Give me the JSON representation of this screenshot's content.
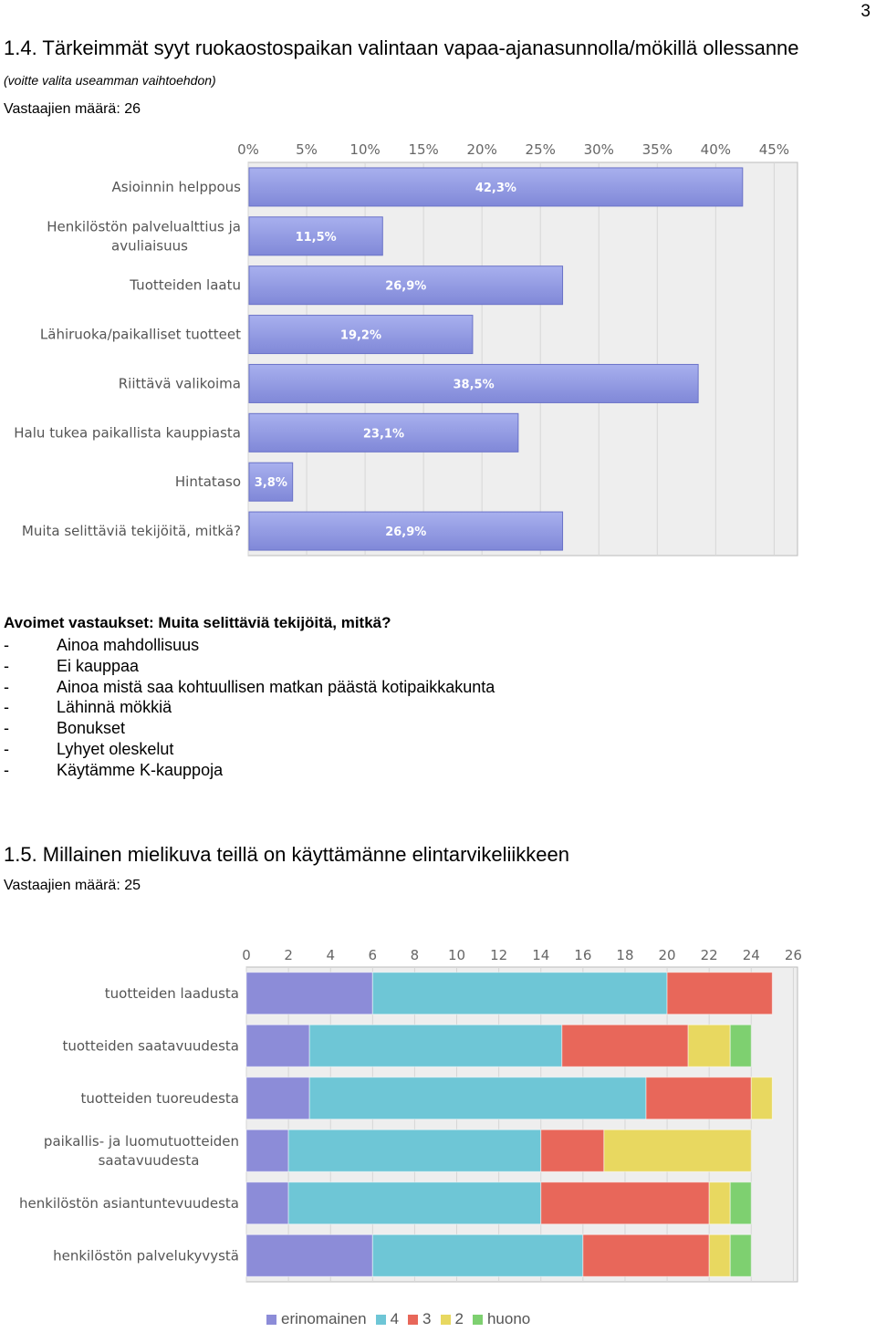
{
  "page_number": "3",
  "section1": {
    "title": "1.4. Tärkeimmät syyt ruokaostospaikan valintaan vapaa-ajanasunnolla/mökillä ollessanne",
    "subtitle": "(voitte valita useamman vaihtoehdon)",
    "respondents": "Vastaajien määrä: 26"
  },
  "open_answers": {
    "title": "Avoimet vastaukset: Muita selittäviä tekijöitä, mitkä?",
    "dash": "-",
    "items": [
      "Ainoa mahdollisuus",
      "Ei kauppaa",
      "Ainoa mistä saa kohtuullisen matkan päästä kotipaikkakunta",
      "Lähinnä mökkiä",
      "Bonukset",
      "Lyhyet oleskelut",
      "Käytämme K-kauppoja"
    ]
  },
  "section2": {
    "title": "1.5. Millainen mielikuva teillä on käyttämänne elintarvikeliikkeen",
    "respondents": "Vastaajien määrä: 25"
  },
  "chart_data": [
    {
      "type": "bar",
      "orientation": "horizontal",
      "categories": [
        "Asioinnin helppous",
        "Henkilöstön palvelualttius ja avuliaisuus",
        "Tuotteiden laatu",
        "Lähiruoka/paikalliset tuotteet",
        "Riittävä valikoima",
        "Halu tukea paikallista kauppiasta",
        "Hintataso",
        "Muita selittäviä tekijöitä, mitkä?"
      ],
      "category_lines": [
        [
          "Asioinnin helppous"
        ],
        [
          "Henkilöstön palvelualttius ja",
          "avuliaisuus"
        ],
        [
          "Tuotteiden laatu"
        ],
        [
          "Lähiruoka/paikalliset tuotteet"
        ],
        [
          "Riittävä valikoima"
        ],
        [
          "Halu tukea paikallista kauppiasta"
        ],
        [
          "Hintataso"
        ],
        [
          "Muita selittäviä tekijöitä, mitkä?"
        ]
      ],
      "values": [
        42.3,
        11.5,
        26.9,
        19.2,
        38.5,
        23.1,
        3.8,
        26.9
      ],
      "value_labels": [
        "42,3%",
        "11,5%",
        "26,9%",
        "19,2%",
        "38,5%",
        "23,1%",
        "3,8%",
        "26,9%"
      ],
      "xlim": [
        0,
        47
      ],
      "ticks": [
        0,
        5,
        10,
        15,
        20,
        25,
        30,
        35,
        40,
        45
      ],
      "tick_labels": [
        "0%",
        "5%",
        "10%",
        "15%",
        "20%",
        "25%",
        "30%",
        "35%",
        "40%",
        "45%"
      ],
      "axis_position": "top",
      "grid": true,
      "bar_color": "#8088d8",
      "bar_color_light": "#a8b0ee"
    },
    {
      "type": "bar",
      "orientation": "horizontal",
      "stacked": true,
      "categories": [
        "tuotteiden laadusta",
        "tuotteiden saatavuudesta",
        "tuotteiden tuoreudesta",
        "paikallis- ja luomutuotteiden saatavuudesta",
        "henkilöstön asiantuntevuudesta",
        "henkilöstön palvelukyvystä"
      ],
      "category_lines": [
        [
          "tuotteiden laadusta"
        ],
        [
          "tuotteiden saatavuudesta"
        ],
        [
          "tuotteiden tuoreudesta"
        ],
        [
          "paikallis- ja luomutuotteiden",
          "saatavuudesta"
        ],
        [
          "henkilöstön asiantuntevuudesta"
        ],
        [
          "henkilöstön palvelukyvystä"
        ]
      ],
      "series": [
        {
          "name": "erinomainen",
          "color": "#8c8cd8",
          "values": [
            6,
            3,
            3,
            2,
            2,
            6
          ]
        },
        {
          "name": "4",
          "color": "#6ec6d6",
          "values": [
            14,
            12,
            16,
            12,
            12,
            10
          ]
        },
        {
          "name": "3",
          "color": "#e8675a",
          "values": [
            5,
            6,
            5,
            3,
            8,
            6
          ]
        },
        {
          "name": "2",
          "color": "#e8d860",
          "values": [
            0,
            2,
            1,
            7,
            1,
            1
          ]
        },
        {
          "name": "huono",
          "color": "#7ed070",
          "values": [
            0,
            1,
            0,
            0,
            1,
            1
          ]
        }
      ],
      "xlim": [
        0,
        26.2
      ],
      "ticks": [
        0,
        2,
        4,
        6,
        8,
        10,
        12,
        14,
        16,
        18,
        20,
        22,
        24,
        26
      ],
      "axis_position": "top",
      "grid": true,
      "legend_position": "bottom"
    }
  ]
}
